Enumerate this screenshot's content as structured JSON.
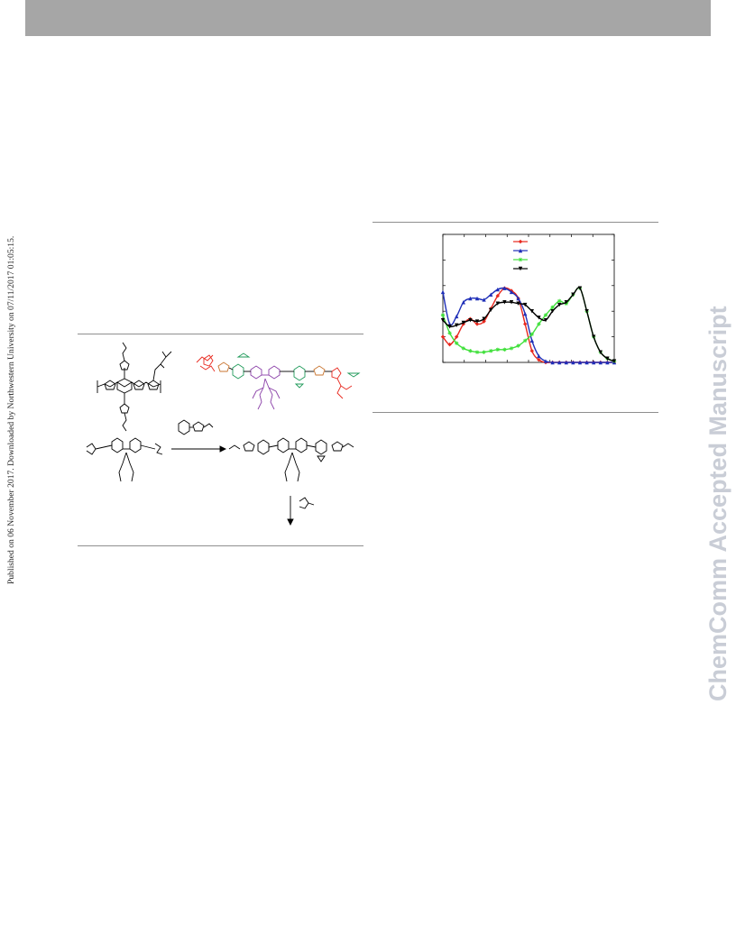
{
  "page": {
    "side_note": "Published on 06 November 2017. Downloaded by Northwestern University on 07/11/2017 01:05:15.",
    "watermark": "ChemComm Accepted Manuscript",
    "header_bar_color": "#a6a6a6"
  },
  "figure_left": {
    "kind": "chemical-structures-and-synthetic-scheme",
    "colors": {
      "bond": "#000000",
      "terminal_group": "#e8281e",
      "thiophene": "#c8742f",
      "benzothiadiazole": "#1f9a5a",
      "fluorene_core": "#8a3fa8"
    }
  },
  "chart_data": {
    "type": "line",
    "title": "",
    "xlabel": "",
    "ylabel": "",
    "xlim": [
      0,
      100
    ],
    "ylim": [
      0,
      1.0
    ],
    "grid": false,
    "legend_placement": "top-center",
    "series": [
      {
        "color": "#e8281e",
        "marker": "diamond",
        "x": [
          0,
          4,
          8,
          12,
          16,
          20,
          24,
          28,
          32,
          36,
          40,
          44,
          48,
          52,
          56,
          60,
          64,
          68,
          72,
          76,
          80,
          84,
          88,
          92,
          96,
          100
        ],
        "y": [
          0.2,
          0.14,
          0.2,
          0.3,
          0.34,
          0.3,
          0.32,
          0.42,
          0.52,
          0.58,
          0.56,
          0.5,
          0.3,
          0.09,
          0.02,
          0.0,
          0.0,
          0.0,
          0.0,
          0.0,
          0.0,
          0.0,
          0.0,
          0.0,
          0.0,
          0.0
        ]
      },
      {
        "color": "#1f2fb8",
        "marker": "triangle-up",
        "x": [
          0,
          4,
          8,
          12,
          16,
          20,
          24,
          28,
          32,
          36,
          40,
          44,
          48,
          52,
          56,
          60,
          64,
          68,
          72,
          76,
          80,
          84,
          88,
          92,
          96,
          100
        ],
        "y": [
          0.55,
          0.3,
          0.36,
          0.47,
          0.5,
          0.5,
          0.49,
          0.53,
          0.57,
          0.58,
          0.55,
          0.5,
          0.38,
          0.17,
          0.05,
          0.01,
          0.0,
          0.0,
          0.0,
          0.0,
          0.0,
          0.0,
          0.0,
          0.0,
          0.0,
          0.0
        ]
      },
      {
        "color": "#3fe03a",
        "marker": "star",
        "x": [
          0,
          4,
          8,
          12,
          16,
          20,
          24,
          28,
          32,
          36,
          40,
          44,
          48,
          52,
          56,
          60,
          64,
          68,
          72,
          76,
          80,
          84,
          88,
          92,
          96,
          100
        ],
        "y": [
          0.37,
          0.23,
          0.15,
          0.11,
          0.09,
          0.08,
          0.08,
          0.09,
          0.1,
          0.1,
          0.11,
          0.13,
          0.17,
          0.22,
          0.3,
          0.37,
          0.43,
          0.48,
          0.46,
          0.53,
          0.58,
          0.4,
          0.2,
          0.08,
          0.03,
          0.01
        ]
      },
      {
        "color": "#000000",
        "marker": "triangle-down",
        "x": [
          0,
          4,
          8,
          12,
          16,
          20,
          24,
          28,
          32,
          36,
          40,
          44,
          48,
          52,
          56,
          60,
          64,
          68,
          72,
          76,
          80,
          84,
          88,
          92,
          96,
          100
        ],
        "y": [
          0.33,
          0.28,
          0.29,
          0.31,
          0.33,
          0.32,
          0.34,
          0.41,
          0.46,
          0.47,
          0.47,
          0.46,
          0.45,
          0.4,
          0.35,
          0.33,
          0.4,
          0.45,
          0.47,
          0.53,
          0.58,
          0.4,
          0.2,
          0.08,
          0.03,
          0.01
        ]
      }
    ]
  }
}
